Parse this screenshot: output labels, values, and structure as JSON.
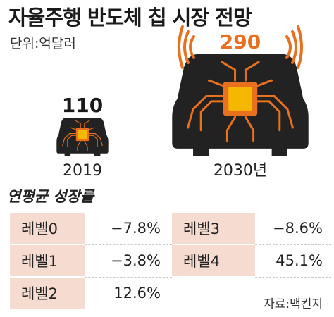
{
  "header": {
    "title": "자율주행 반도체 칩 시장 전망",
    "unit": "단위:억달러"
  },
  "chart_data": {
    "type": "bar",
    "categories": [
      "2019",
      "2030년"
    ],
    "values": [
      110,
      290
    ],
    "title": "자율주행 반도체 칩 시장 전망",
    "ylabel": "단위:억달러"
  },
  "growth": {
    "title": "연평균 성장률",
    "rows": [
      [
        {
          "level": "레벨0",
          "value": "−7.8%"
        },
        {
          "level": "레벨3",
          "value": "−8.6%"
        }
      ],
      [
        {
          "level": "레벨1",
          "value": "−3.8%"
        },
        {
          "level": "레벨4",
          "value": "45.1%"
        }
      ],
      [
        {
          "level": "레벨2",
          "value": "12.6%"
        }
      ]
    ]
  },
  "footer": {
    "source": "자료:맥킨지"
  },
  "colors": {
    "car": "#222222",
    "chip": "#f5b800",
    "circuit": "#e8701e",
    "signal": "#e8701e",
    "level_bg": "#f6dcd0"
  }
}
